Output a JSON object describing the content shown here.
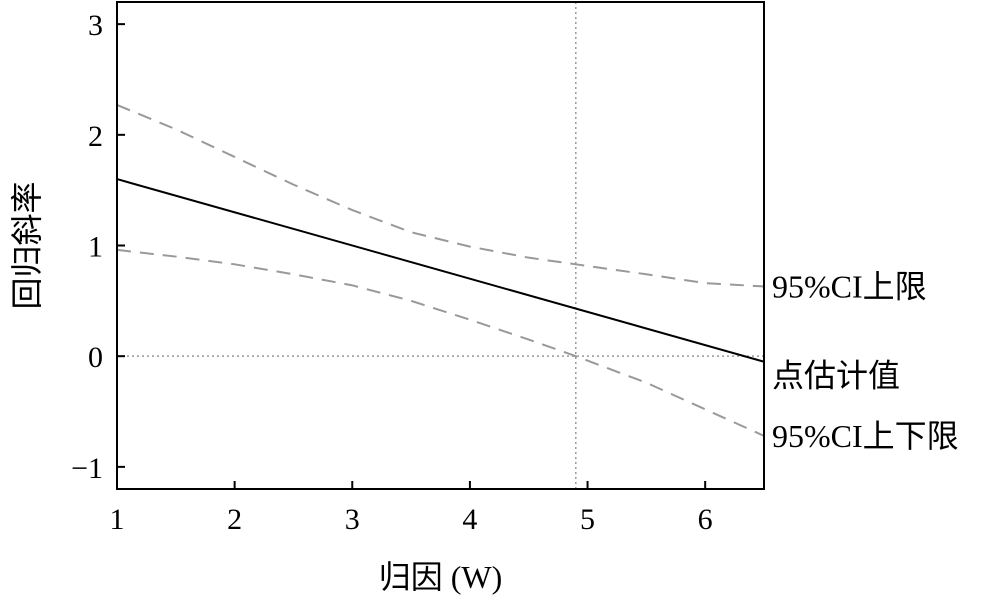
{
  "chart_data": {
    "type": "line",
    "title": "",
    "xlabel": "归因 (W)",
    "ylabel": "回归斜率",
    "xlim": [
      1,
      6.5
    ],
    "ylim": [
      -1.2,
      3.2
    ],
    "x_ticks": [
      1,
      2,
      3,
      4,
      5,
      6
    ],
    "y_ticks": [
      3,
      2,
      1,
      0,
      -1
    ],
    "y_tick_labels": [
      "3",
      "2",
      "1",
      "0",
      "−1"
    ],
    "grid": false,
    "reference_lines": [
      {
        "orientation": "horizontal",
        "value": 0,
        "style": "dotted"
      },
      {
        "orientation": "vertical",
        "value": 4.9,
        "style": "dotted"
      }
    ],
    "series": [
      {
        "name": "95%CI上限",
        "style": "dashed",
        "color": "#999999",
        "x": [
          1,
          1.5,
          2,
          2.5,
          3,
          3.5,
          4,
          4.5,
          4.9,
          5.5,
          6,
          6.5
        ],
        "values": [
          2.27,
          2.05,
          1.8,
          1.55,
          1.32,
          1.12,
          0.99,
          0.89,
          0.83,
          0.74,
          0.66,
          0.63
        ]
      },
      {
        "name": "点估计值",
        "style": "solid",
        "color": "#000000",
        "x": [
          1,
          6.5
        ],
        "values": [
          1.6,
          -0.05
        ]
      },
      {
        "name": "95%CI上下限",
        "style": "dashed",
        "color": "#999999",
        "x": [
          1,
          1.5,
          2,
          2.5,
          3,
          3.5,
          4,
          4.5,
          4.9,
          5.5,
          6,
          6.5
        ],
        "values": [
          0.96,
          0.9,
          0.83,
          0.74,
          0.64,
          0.5,
          0.33,
          0.15,
          0.0,
          -0.24,
          -0.48,
          -0.72
        ]
      }
    ]
  }
}
